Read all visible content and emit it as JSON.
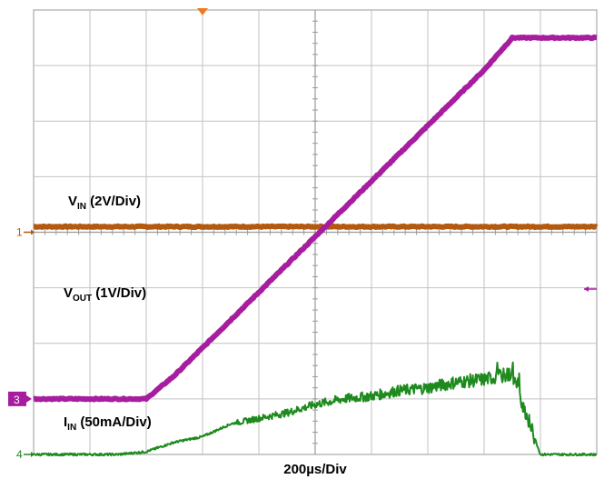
{
  "chart_data": {
    "type": "line",
    "title": "",
    "xlabel": "200µs/Div",
    "ylabel": "",
    "grid": true,
    "x_divisions": 10,
    "y_divisions": 8,
    "xlim": [
      0,
      10
    ],
    "ylim": [
      0,
      8
    ],
    "series": [
      {
        "name": "VIN (2V/Div)",
        "name_main": "V",
        "name_sub": "IN",
        "name_rest": " (2V/Div)",
        "channel_marker": "1",
        "color": "#b35a10",
        "x": [
          0,
          10
        ],
        "y": [
          4.1,
          4.1
        ]
      },
      {
        "name": "VOUT (1V/Div)",
        "name_main": "V",
        "name_sub": "OUT",
        "name_rest": " (1V/Div)",
        "channel_marker": "3",
        "color": "#a61e9f",
        "x": [
          0,
          0.5,
          1.0,
          1.5,
          2.0,
          2.5,
          3.0,
          3.5,
          4.0,
          4.5,
          5.0,
          5.5,
          6.0,
          6.5,
          7.0,
          7.5,
          8.0,
          8.5,
          9.0,
          9.5,
          10.0
        ],
        "y": [
          1.0,
          1.0,
          1.0,
          1.0,
          1.0,
          1.42,
          1.92,
          2.42,
          2.92,
          3.42,
          3.92,
          4.42,
          4.92,
          5.42,
          5.92,
          6.42,
          6.92,
          7.5,
          7.5,
          7.5,
          7.5
        ]
      },
      {
        "name": "IIN (50mA/Div)",
        "name_main": "I",
        "name_sub": "IN",
        "name_rest": " (50mA/Div)",
        "channel_marker": "4",
        "color": "#1e8a1e",
        "x": [
          0,
          0.5,
          1.0,
          1.5,
          2.0,
          2.5,
          3.0,
          3.5,
          4.0,
          4.5,
          5.0,
          5.5,
          6.0,
          6.5,
          7.0,
          7.5,
          8.0,
          8.5,
          9.0,
          9.5,
          10.0
        ],
        "y": [
          0.0,
          0.0,
          0.0,
          0.0,
          0.05,
          0.22,
          0.32,
          0.55,
          0.65,
          0.75,
          0.9,
          1.0,
          1.05,
          1.15,
          1.2,
          1.3,
          1.35,
          1.45,
          0.0,
          0.0,
          0.0
        ]
      }
    ]
  }
}
